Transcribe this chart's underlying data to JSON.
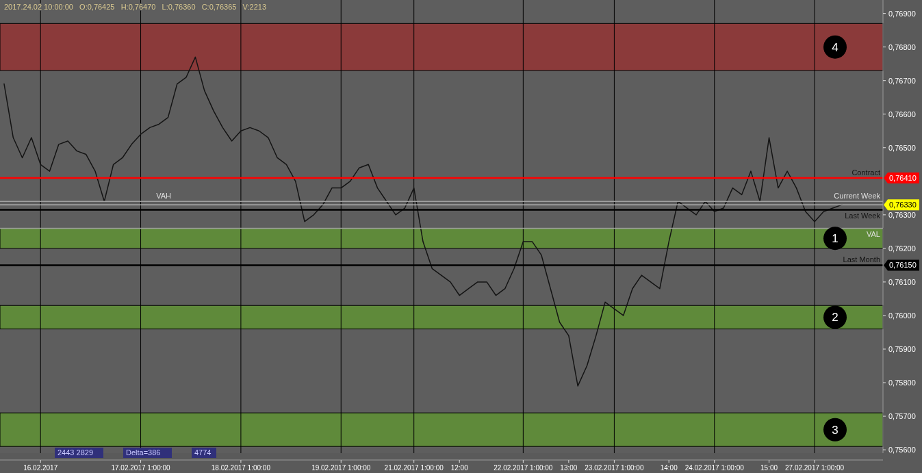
{
  "chart_data": {
    "type": "line",
    "categories": [
      null,
      null,
      null,
      null,
      "16.02.2017",
      null,
      null,
      null,
      null,
      null,
      null,
      null,
      null,
      null,
      null,
      "17.02.2017 1:00:00",
      null,
      null,
      null,
      null,
      null,
      null,
      null,
      null,
      null,
      null,
      "18.02.2017 1:00:00",
      null,
      null,
      null,
      null,
      null,
      null,
      null,
      null,
      null,
      null,
      "19.02.2017 1:00:00",
      null,
      null,
      null,
      null,
      null,
      null,
      null,
      "21.02.2017 1:00:00",
      null,
      null,
      null,
      null,
      "12:00",
      null,
      null,
      null,
      null,
      null,
      null,
      "22.02.2017 1:00:00",
      null,
      null,
      null,
      null,
      "13:00",
      null,
      null,
      null,
      null,
      "23.02.2017 1:00:00",
      null,
      null,
      null,
      null,
      null,
      "14:00",
      null,
      null,
      null,
      null,
      "24.02.2017 1:00:00",
      null,
      null,
      null,
      null,
      null,
      "15:00",
      null,
      null,
      null,
      null,
      "27.02.2017 1:00:00",
      null,
      null,
      null
    ],
    "series": [
      {
        "color": "#141414",
        "values": [
          0.7669,
          0.7653,
          0.7647,
          0.7653,
          0.7645,
          0.7643,
          0.7651,
          0.7652,
          0.7649,
          0.7648,
          0.7643,
          0.7634,
          0.7645,
          0.7647,
          0.7651,
          0.7654,
          0.7656,
          0.7657,
          0.7659,
          0.7669,
          0.7671,
          0.7677,
          0.7667,
          0.7661,
          0.7656,
          0.7652,
          0.7655,
          0.7656,
          0.7655,
          0.7653,
          0.7647,
          0.7645,
          0.764,
          0.7628,
          0.763,
          0.7633,
          0.7638,
          0.7638,
          0.764,
          0.7644,
          0.7645,
          0.7638,
          0.7634,
          0.763,
          0.7632,
          0.7638,
          0.7622,
          0.7614,
          0.7612,
          0.761,
          0.7606,
          0.7608,
          0.761,
          0.761,
          0.7606,
          0.7608,
          0.7614,
          0.7622,
          0.7622,
          0.7618,
          0.7608,
          0.7598,
          0.7594,
          0.7579,
          0.7585,
          0.7594,
          0.7604,
          0.7602,
          0.76,
          0.7608,
          0.7612,
          0.761,
          0.7608,
          0.7622,
          0.7634,
          0.7632,
          0.763,
          0.7634,
          0.7631,
          0.7632,
          0.7638,
          0.7636,
          0.7643,
          0.7634,
          0.7653,
          0.7638,
          0.7643,
          0.7638,
          0.7631,
          0.7628,
          0.7631,
          0.7632,
          0.7633
        ]
      }
    ],
    "ylim": [
      0.7559,
      0.7694
    ],
    "yticks": [
      {
        "value": 0.756,
        "label": "0,75600"
      },
      {
        "value": 0.757,
        "label": "0,75700"
      },
      {
        "value": 0.758,
        "label": "0,75800"
      },
      {
        "value": 0.759,
        "label": "0,75900"
      },
      {
        "value": 0.76,
        "label": "0,76000"
      },
      {
        "value": 0.761,
        "label": "0,76100"
      },
      {
        "value": 0.762,
        "label": "0,76200"
      },
      {
        "value": 0.763,
        "label": "0,76300"
      },
      {
        "value": 0.765,
        "label": "0,76500"
      },
      {
        "value": 0.766,
        "label": "0,76600"
      },
      {
        "value": 0.767,
        "label": "0,76700"
      },
      {
        "value": 0.768,
        "label": "0,76800"
      },
      {
        "value": 0.769,
        "label": "0,76900"
      }
    ],
    "grid": "x",
    "bands": [
      {
        "axis": "y",
        "from": 0.7673,
        "to": 0.7687,
        "label": "4",
        "color": "#8b3a3a"
      },
      {
        "axis": "y",
        "from": 0.762,
        "to": 0.7626,
        "label": "1",
        "color": "#5f8a3a"
      },
      {
        "axis": "y",
        "from": 0.7596,
        "to": 0.7603,
        "label": "2",
        "color": "#5f8a3a"
      },
      {
        "axis": "y",
        "from": 0.7561,
        "to": 0.7571,
        "label": "3",
        "color": "#5f8a3a"
      }
    ],
    "ref_lines": [
      {
        "axis": "y",
        "value": 0.7641,
        "label": "Contract",
        "color": "#ff0000"
      },
      {
        "axis": "y",
        "value": 0.7633,
        "label": "Current Week",
        "color": "#b4b4b4"
      },
      {
        "axis": "y",
        "value": 0.76315,
        "label": "Last Week",
        "color": "#000000"
      },
      {
        "axis": "y",
        "value": 0.7615,
        "label": "Last Month",
        "color": "#000000"
      },
      {
        "axis": "y",
        "value": 0.7634,
        "label": "VAH",
        "color": "#a0a0a0"
      },
      {
        "axis": "y",
        "value": 0.7626,
        "label": "VAL",
        "color": "#a0a0a0"
      }
    ],
    "annotations": [
      "2017.24.02 10:00:00   O:0,76425   H:0,76470   L:0,76360   C:0,76365   V:2213",
      "2443 2829",
      "Delta=386",
      "4774",
      "0,76410",
      "0,76330",
      "0,76150"
    ]
  }
}
